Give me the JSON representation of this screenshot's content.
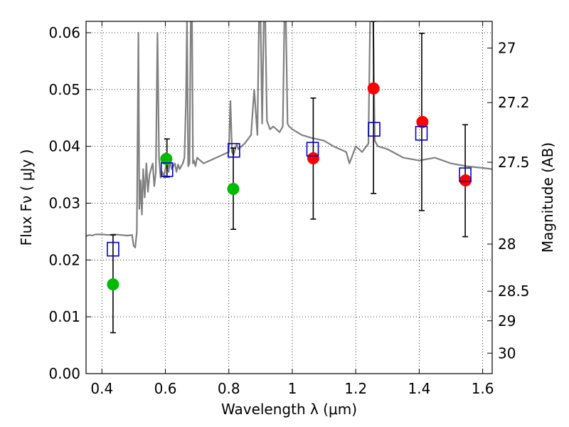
{
  "chart_data": {
    "type": "scatter",
    "xlabel": "Wavelength  λ (μm)",
    "ylabel": "Flux  Fν  ( μJy )",
    "y2label": "Magnitude (AB)",
    "xlim": [
      0.35,
      1.63
    ],
    "ylim": [
      0.0,
      0.062
    ],
    "xticks": [
      "0.4",
      "0.6",
      "0.8",
      "1",
      "1.2",
      "1.4",
      "1.6"
    ],
    "xtick_values": [
      0.4,
      0.6,
      0.8,
      1.0,
      1.2,
      1.4,
      1.6
    ],
    "yticks": [
      "0.00",
      "0.01",
      "0.02",
      "0.03",
      "0.04",
      "0.05",
      "0.06"
    ],
    "ytick_values": [
      0.0,
      0.01,
      0.02,
      0.03,
      0.04,
      0.05,
      0.06
    ],
    "y2ticks": [
      "27",
      "27.2",
      "27.5",
      "28",
      "28.5",
      "29",
      "30"
    ],
    "y2tick_flux": [
      0.0573,
      0.0477,
      0.0372,
      0.0228,
      0.0145,
      0.0093,
      0.0036
    ],
    "grid": true,
    "grid_style": "dotted",
    "series": [
      {
        "kind": "line",
        "color": "#808080",
        "x": [
          0.35,
          0.36,
          0.37,
          0.38,
          0.4,
          0.42,
          0.44,
          0.46,
          0.48,
          0.495,
          0.5,
          0.505,
          0.51,
          0.515,
          0.518,
          0.522,
          0.526,
          0.53,
          0.535,
          0.54,
          0.545,
          0.55,
          0.555,
          0.56,
          0.565,
          0.57,
          0.575,
          0.58,
          0.585,
          0.59,
          0.595,
          0.6,
          0.605,
          0.61,
          0.615,
          0.62,
          0.625,
          0.63,
          0.635,
          0.64,
          0.645,
          0.65,
          0.655,
          0.66,
          0.665,
          0.668,
          0.672,
          0.676,
          0.68,
          0.684,
          0.687,
          0.69,
          0.695,
          0.7,
          0.72,
          0.74,
          0.76,
          0.78,
          0.8,
          0.805,
          0.81,
          0.815,
          0.82,
          0.825,
          0.83,
          0.85,
          0.87,
          0.88,
          0.89,
          0.895,
          0.9,
          0.905,
          0.91,
          0.915,
          0.92,
          0.93,
          0.94,
          0.95,
          0.96,
          0.97,
          0.975,
          0.98,
          0.985,
          0.99,
          1.0,
          1.03,
          1.06,
          1.1,
          1.13,
          1.15,
          1.17,
          1.18,
          1.2,
          1.22,
          1.24,
          1.245,
          1.25,
          1.255,
          1.26,
          1.27,
          1.3,
          1.35,
          1.4,
          1.45,
          1.5,
          1.55,
          1.6,
          1.63
        ],
        "y": [
          0.0242,
          0.0244,
          0.0243,
          0.0245,
          0.0245,
          0.0244,
          0.0245,
          0.0244,
          0.0243,
          0.0244,
          0.0225,
          0.0222,
          0.025,
          0.06,
          0.029,
          0.034,
          0.028,
          0.036,
          0.031,
          0.037,
          0.032,
          0.035,
          0.036,
          0.037,
          0.033,
          0.0355,
          0.06,
          0.038,
          0.0345,
          0.0355,
          0.0345,
          0.036,
          0.038,
          0.0355,
          0.0375,
          0.036,
          0.0365,
          0.037,
          0.0355,
          0.0368,
          0.036,
          0.0365,
          0.037,
          0.038,
          0.048,
          0.062,
          0.0365,
          0.037,
          0.062,
          0.062,
          0.037,
          0.0375,
          0.0365,
          0.038,
          0.037,
          0.0375,
          0.038,
          0.0385,
          0.039,
          0.048,
          0.039,
          0.0385,
          0.0395,
          0.0405,
          0.0395,
          0.0405,
          0.042,
          0.05,
          0.042,
          0.062,
          0.062,
          0.044,
          0.062,
          0.062,
          0.0445,
          0.043,
          0.0435,
          0.043,
          0.0425,
          0.0435,
          0.062,
          0.062,
          0.044,
          0.0435,
          0.043,
          0.042,
          0.0415,
          0.041,
          0.04,
          0.0395,
          0.039,
          0.037,
          0.04,
          0.039,
          0.0405,
          0.062,
          0.062,
          0.062,
          0.041,
          0.04,
          0.0395,
          0.038,
          0.0375,
          0.038,
          0.037,
          0.0365,
          0.0362,
          0.036
        ]
      },
      {
        "kind": "points",
        "marker": "circle",
        "color": "#00bb00",
        "x": [
          0.435,
          0.603,
          0.814
        ],
        "y": [
          0.0157,
          0.0378,
          0.0325
        ]
      },
      {
        "kind": "points",
        "marker": "circle",
        "color": "#ff0000",
        "x": [
          1.066,
          1.256,
          1.41,
          1.546
        ],
        "y": [
          0.0379,
          0.0502,
          0.0443,
          0.034
        ]
      },
      {
        "kind": "points",
        "marker": "square",
        "color": "#0000cc",
        "x": [
          0.435,
          0.605,
          0.816,
          1.064,
          1.258,
          1.407,
          1.545
        ],
        "y": [
          0.0219,
          0.0359,
          0.0393,
          0.0395,
          0.043,
          0.0423,
          0.035
        ]
      }
    ],
    "errorbars": {
      "color": "#000000",
      "x": [
        0.435,
        0.605,
        0.814,
        1.066,
        1.256,
        1.408,
        1.545
      ],
      "y": [
        0.0157,
        0.0378,
        0.0325,
        0.0379,
        0.043,
        0.0423,
        0.034
      ],
      "lower": [
        0.0072,
        0.0346,
        0.0254,
        0.0272,
        0.0317,
        0.0287,
        0.0241
      ],
      "upper": [
        0.0244,
        0.0413,
        0.0397,
        0.0485,
        0.062,
        0.0599,
        0.0438
      ]
    }
  }
}
